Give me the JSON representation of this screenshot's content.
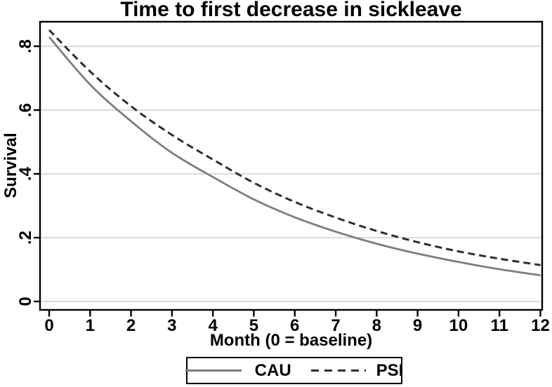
{
  "chart_data": {
    "type": "line",
    "title": "Time to first decrease in sickleave",
    "xlabel": "Month (0 = baseline)",
    "ylabel": "Survival",
    "x": [
      0,
      1,
      2,
      3,
      4,
      5,
      6,
      7,
      8,
      9,
      10,
      11,
      12
    ],
    "x_tick_labels": [
      "0",
      "1",
      "2",
      "3",
      "4",
      "5",
      "6",
      "7",
      "8",
      "9",
      "10",
      "11",
      "12"
    ],
    "y_tick_labels": [
      "0",
      ".2",
      ".4",
      ".6",
      ".8"
    ],
    "y_tick_values": [
      0,
      0.2,
      0.4,
      0.6,
      0.8
    ],
    "xlim": [
      -0.22,
      12.05
    ],
    "ylim": [
      -0.026,
      0.877
    ],
    "grid": "horizontal-light-gray",
    "legend_position": "bottom-center-boxed",
    "series": [
      {
        "name": "CAU",
        "line_style": "solid",
        "color": "#7d7d7d",
        "values": [
          0.829,
          0.68,
          0.565,
          0.466,
          0.39,
          0.32,
          0.264,
          0.219,
          0.181,
          0.15,
          0.124,
          0.101,
          0.082
        ]
      },
      {
        "name": "PSI",
        "line_style": "dashed",
        "color": "#2e2e2e",
        "values": [
          0.851,
          0.721,
          0.612,
          0.522,
          0.445,
          0.372,
          0.312,
          0.263,
          0.221,
          0.186,
          0.157,
          0.134,
          0.114
        ]
      }
    ]
  },
  "colors": {
    "background": "#ffffff",
    "axis": "#000000",
    "grid": "#d6d6d6",
    "cau_line": "#7d7d7d",
    "psi_line": "#2e2e2e"
  }
}
